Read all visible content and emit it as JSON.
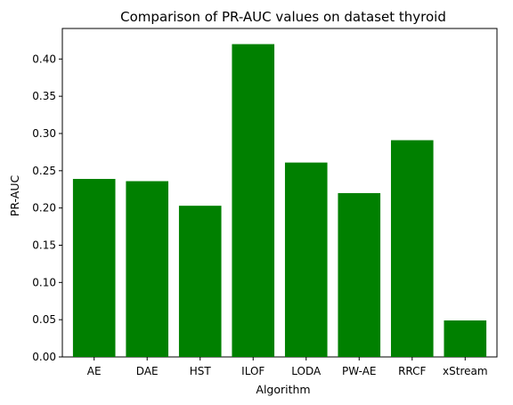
{
  "chart_data": {
    "type": "bar",
    "title": "Comparison of PR-AUC values on dataset thyroid",
    "xlabel": "Algorithm",
    "ylabel": "PR-AUC",
    "categories": [
      "AE",
      "DAE",
      "HST",
      "ILOF",
      "LODA",
      "PW-AE",
      "RRCF",
      "xStream"
    ],
    "values": [
      0.239,
      0.236,
      0.203,
      0.42,
      0.261,
      0.22,
      0.291,
      0.049
    ],
    "ylim": [
      0,
      0.441
    ],
    "yticks": [
      "0.00",
      "0.05",
      "0.10",
      "0.15",
      "0.20",
      "0.25",
      "0.30",
      "0.35",
      "0.40"
    ],
    "bar_color": "#008000",
    "grid": false,
    "legend": "none"
  }
}
